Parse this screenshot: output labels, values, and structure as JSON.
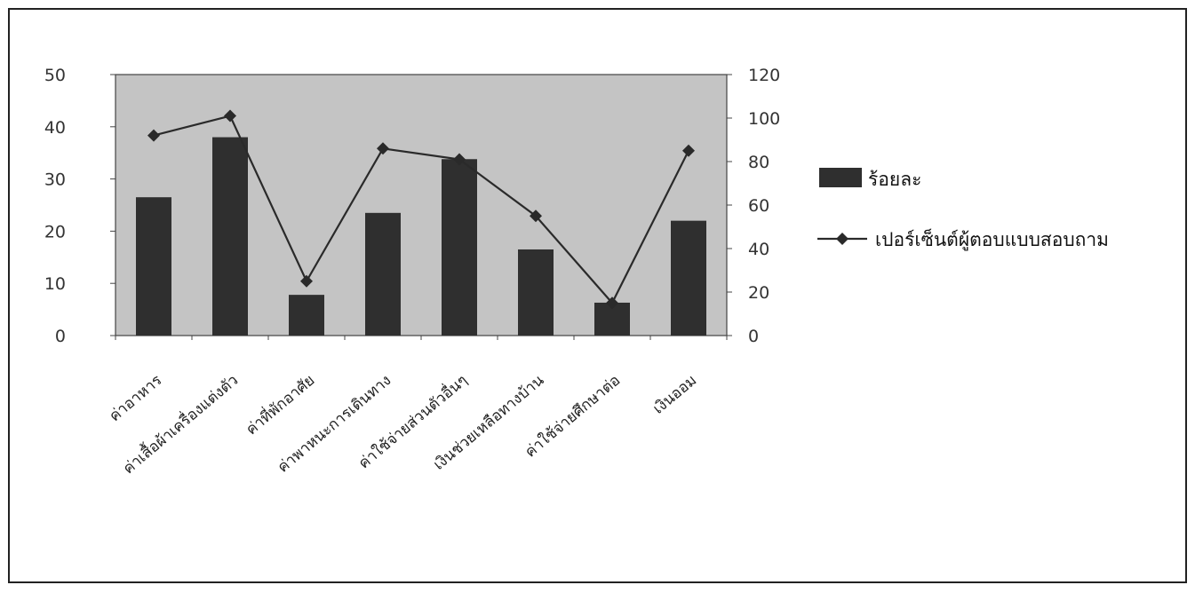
{
  "chart_data": {
    "type": "bar",
    "categories": [
      "ค่าอาหาร",
      "ค่าเสื้อผ้าเครื่องแต่งตัว",
      "ค่าที่พักอาศัย",
      "ค่าพาหนะการเดินทาง",
      "ค่าใช้จ่ายส่วนตัวอื่นๆ",
      "เงินช่วยเหลือทางบ้าน",
      "ค่าใช้จ่ายศึกษาต่อ",
      "เงินออม"
    ],
    "series": [
      {
        "name": "ร้อยละ",
        "type": "bar",
        "axis": "left",
        "values": [
          26.5,
          38,
          7.8,
          23.5,
          33.8,
          16.5,
          6.3,
          22
        ]
      },
      {
        "name": "เปอร์เซ็นต์ผู้ตอบแบบสอบถาม",
        "type": "line",
        "axis": "right",
        "values": [
          92,
          101,
          25,
          86,
          81,
          55,
          15,
          85
        ]
      }
    ],
    "y_left": {
      "ticks": [
        0,
        10,
        20,
        30,
        40,
        50
      ],
      "lim": [
        0,
        50
      ]
    },
    "y_right": {
      "ticks": [
        0,
        20,
        40,
        60,
        80,
        100,
        120
      ],
      "lim": [
        0,
        120
      ]
    },
    "legend_position": "right",
    "title": "",
    "xlabel": "",
    "ylabel": "",
    "colors": {
      "bar": "#2f2f2f",
      "line": "#2a2a2a",
      "plot_bg": "#c4c4c4"
    }
  }
}
